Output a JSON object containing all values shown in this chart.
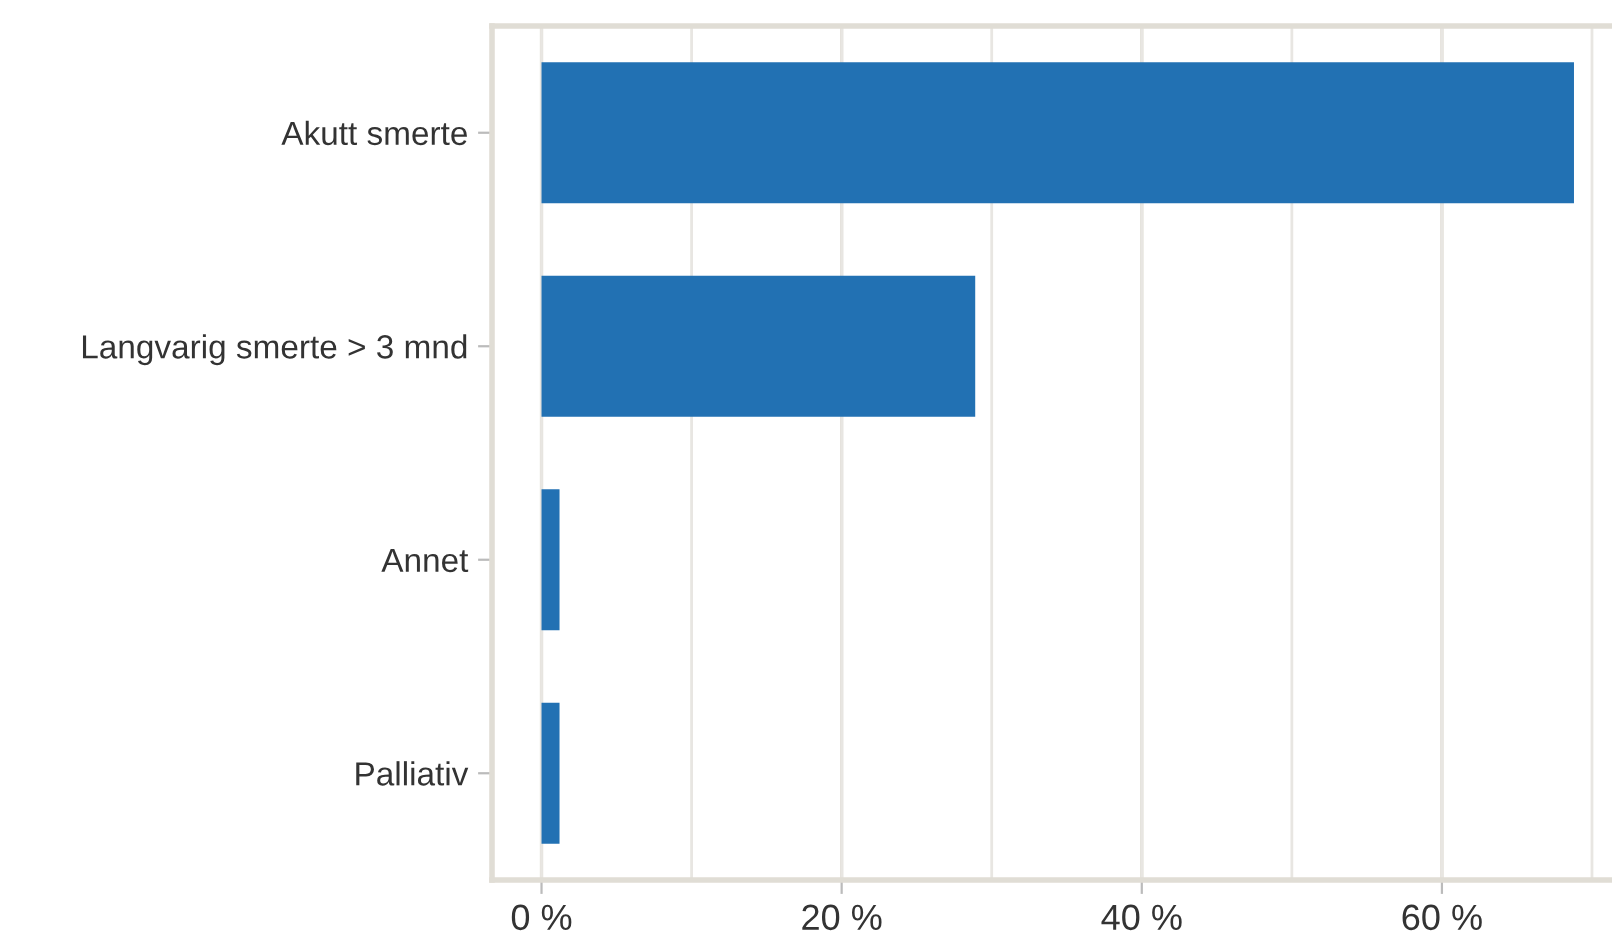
{
  "chart_data": {
    "type": "bar",
    "orientation": "horizontal",
    "categories": [
      "Akutt smerte",
      "Langvarig smerte > 3 mnd",
      "Annet",
      "Palliativ"
    ],
    "values": [
      68.8,
      28.9,
      1.2,
      1.2
    ],
    "color": "#2271b3",
    "xlim": [
      -3.3,
      71.2
    ],
    "xticks": [
      {
        "value": 0,
        "label": "0 %"
      },
      {
        "value": 10,
        "label": null
      },
      {
        "value": 20,
        "label": "20 %"
      },
      {
        "value": 30,
        "label": null
      },
      {
        "value": 40,
        "label": "40 %"
      },
      {
        "value": 50,
        "label": null
      },
      {
        "value": 60,
        "label": "60 %"
      },
      {
        "value": 70,
        "label": null
      }
    ],
    "grid": "x"
  }
}
